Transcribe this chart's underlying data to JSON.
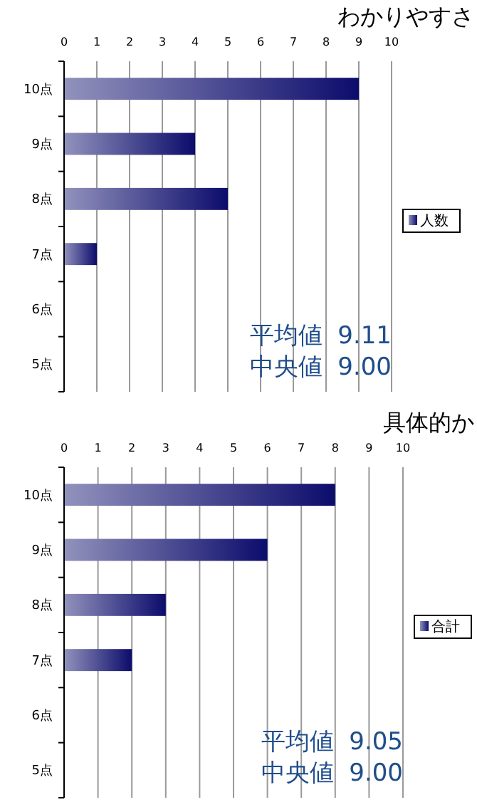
{
  "chart_data": [
    {
      "type": "bar",
      "orientation": "horizontal",
      "title": "わかりやすさ",
      "categories": [
        "10点",
        "9点",
        "8点",
        "7点",
        "6点",
        "5点"
      ],
      "series": [
        {
          "name": "人数",
          "color": "#0c0c6c",
          "values": [
            9,
            4,
            5,
            1,
            0,
            0
          ]
        }
      ],
      "xlim": [
        0,
        10
      ],
      "xticks": [
        0,
        1,
        2,
        3,
        4,
        5,
        6,
        7,
        8,
        9,
        10
      ],
      "grid": "x",
      "legend": "right",
      "annotations": [
        "平均値  9.11",
        "中央値  9.00"
      ]
    },
    {
      "type": "bar",
      "orientation": "horizontal",
      "title": "具体的か",
      "categories": [
        "10点",
        "9点",
        "8点",
        "7点",
        "6点",
        "5点"
      ],
      "series": [
        {
          "name": "合計",
          "color": "#0c0c6c",
          "values": [
            8,
            6,
            3,
            2,
            0,
            0
          ]
        }
      ],
      "xlim": [
        0,
        10
      ],
      "xticks": [
        0,
        1,
        2,
        3,
        4,
        5,
        6,
        7,
        8,
        9,
        10
      ],
      "grid": "x",
      "legend": "right",
      "annotations": [
        "平均値  9.05",
        "中央値  9.00"
      ]
    }
  ]
}
